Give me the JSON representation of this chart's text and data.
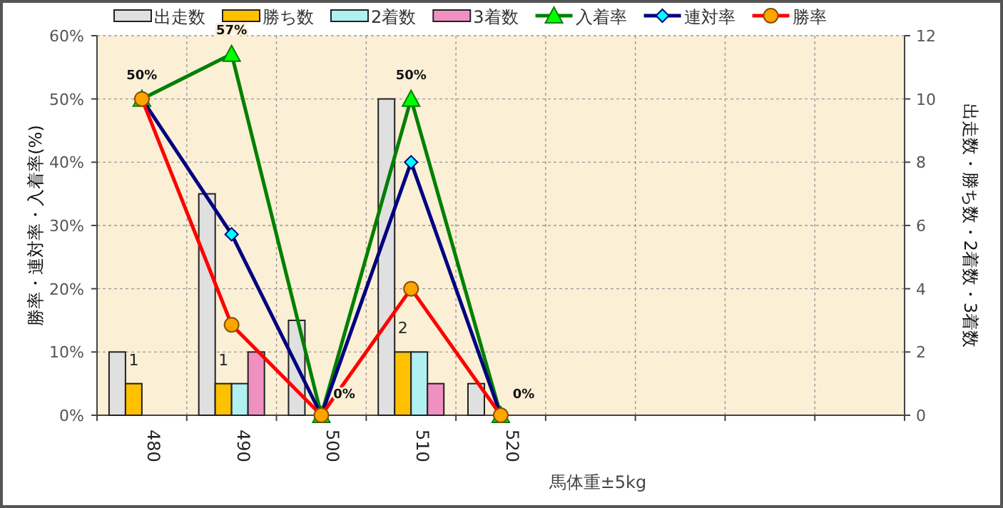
{
  "chart_data": {
    "type": "bar",
    "xlabel": "馬体重±5kg",
    "ylabel": "勝率・連対率・入着率(%)",
    "y2label": "出走数・勝ち数・2着数・3着数",
    "categories": [
      "480",
      "490",
      "500",
      "510",
      "520",
      null,
      null,
      null,
      null
    ],
    "ylim": [
      0,
      60
    ],
    "yticks": [
      {
        "value": 0,
        "label": "0%"
      },
      {
        "value": 10,
        "label": "10%"
      },
      {
        "value": 20,
        "label": "20%"
      },
      {
        "value": 30,
        "label": "30%"
      },
      {
        "value": 40,
        "label": "40%"
      },
      {
        "value": 50,
        "label": "50%"
      },
      {
        "value": 60,
        "label": "60%"
      }
    ],
    "y2lim": [
      0,
      12
    ],
    "y2ticks": [
      0,
      2,
      4,
      6,
      8,
      10,
      12
    ],
    "grid": true,
    "legend": "top",
    "series": [
      {
        "name": "出走数",
        "axis": "y2",
        "color": "#e0e0e0",
        "values": [
          2,
          7,
          3,
          10,
          1,
          null,
          null,
          null,
          null
        ]
      },
      {
        "name": "勝ち数",
        "axis": "y2",
        "color": "#ffc000",
        "values": [
          1,
          1,
          0,
          2,
          0,
          null,
          null,
          null,
          null
        ],
        "value_labels": [
          "1",
          "1",
          null,
          "2",
          null,
          null,
          null,
          null,
          null
        ]
      },
      {
        "name": "2着数",
        "axis": "y2",
        "color": "#b0f0f0",
        "values": [
          0,
          1,
          0,
          2,
          0,
          null,
          null,
          null,
          null
        ]
      },
      {
        "name": "3着数",
        "axis": "y2",
        "color": "#f090c0",
        "values": [
          0,
          2,
          0,
          1,
          0,
          null,
          null,
          null,
          null
        ]
      },
      {
        "name": "入着率",
        "type": "line",
        "color": "#008000",
        "marker": "triangle",
        "values": [
          50,
          57.1,
          0,
          50,
          0,
          null,
          null,
          null,
          null
        ],
        "value_labels": [
          "50%",
          "57%",
          "0%",
          "50%",
          "0%",
          null,
          null,
          null,
          null
        ]
      },
      {
        "name": "連対率",
        "type": "line",
        "color": "#000080",
        "marker": "diamond",
        "values": [
          50,
          28.6,
          0,
          40,
          0,
          null,
          null,
          null,
          null
        ]
      },
      {
        "name": "勝率",
        "type": "line",
        "color": "#ff0000",
        "marker": "circle",
        "values": [
          50,
          14.3,
          0,
          20,
          0,
          null,
          null,
          null,
          null
        ]
      }
    ]
  }
}
